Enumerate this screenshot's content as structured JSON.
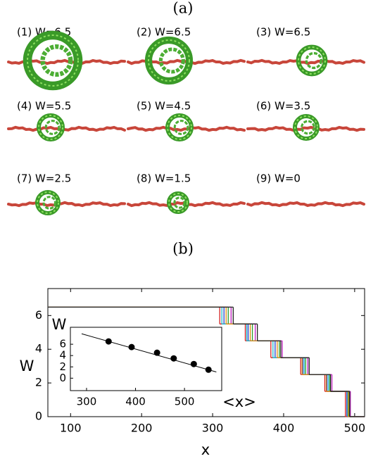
{
  "panel_a": {
    "label": "(a)",
    "snapshots": [
      "(1) W=6.5",
      "(2) W=6.5",
      "(3) W=6.5",
      "(4) W=5.5",
      "(5) W=4.5",
      "(6) W=3.5",
      "(7) W=2.5",
      "(8) W=1.5",
      "(9) W=0"
    ]
  },
  "panel_b": {
    "label": "(b)"
  },
  "chart_data": [
    {
      "type": "step",
      "xlabel": "x",
      "ylabel": "W",
      "xlim": [
        68,
        514
      ],
      "ylim": [
        0,
        7.6
      ],
      "xticks": [
        100,
        200,
        300,
        400,
        500
      ],
      "yticks": [
        0,
        2,
        4,
        6
      ],
      "series": [
        {
          "color": "#1f3fd0",
          "x": [
            68,
            316,
            350,
            388,
            427,
            461,
            489
          ],
          "values": [
            6.5,
            5.5,
            4.5,
            3.5,
            2.5,
            1.5,
            0
          ]
        },
        {
          "color": "#2a9a2a",
          "x": [
            68,
            322,
            356,
            394,
            431,
            465,
            492
          ],
          "values": [
            6.5,
            5.5,
            4.5,
            3.5,
            2.5,
            1.5,
            0
          ]
        },
        {
          "color": "#d42020",
          "x": [
            68,
            310,
            346,
            382,
            424,
            458,
            487
          ],
          "values": [
            6.5,
            5.5,
            4.5,
            3.5,
            2.5,
            1.5,
            0
          ]
        },
        {
          "color": "#c020c0",
          "x": [
            68,
            326,
            360,
            398,
            434,
            468,
            494
          ],
          "values": [
            6.5,
            5.5,
            4.5,
            3.5,
            2.5,
            1.5,
            0
          ]
        },
        {
          "color": "#20b8c8",
          "x": [
            68,
            313,
            348,
            385,
            429,
            463,
            490
          ],
          "values": [
            6.5,
            5.5,
            4.5,
            3.5,
            2.5,
            1.5,
            0
          ]
        },
        {
          "color": "#e08a10",
          "x": [
            68,
            319,
            353,
            391,
            426,
            460,
            491
          ],
          "values": [
            6.5,
            5.5,
            4.5,
            3.5,
            2.5,
            1.5,
            0
          ]
        },
        {
          "color": "#202020",
          "x": [
            68,
            329,
            363,
            396,
            436,
            466,
            493
          ],
          "values": [
            6.5,
            5.5,
            4.5,
            3.5,
            2.5,
            1.5,
            0
          ]
        }
      ]
    },
    {
      "type": "scatter",
      "xlabel": "<x>",
      "ylabel": "W",
      "xlim": [
        267,
        576
      ],
      "ylim": [
        -2.2,
        9
      ],
      "xticks": [
        300,
        400,
        500
      ],
      "yticks": [
        0,
        2,
        4,
        6
      ],
      "x": [
        345,
        392,
        444,
        478,
        519,
        549
      ],
      "values": [
        6.5,
        5.5,
        4.5,
        3.5,
        2.5,
        1.5
      ],
      "color": "#000000",
      "fit": {
        "x": [
          290,
          565
        ],
        "values": [
          7.85,
          1.1
        ]
      }
    }
  ]
}
